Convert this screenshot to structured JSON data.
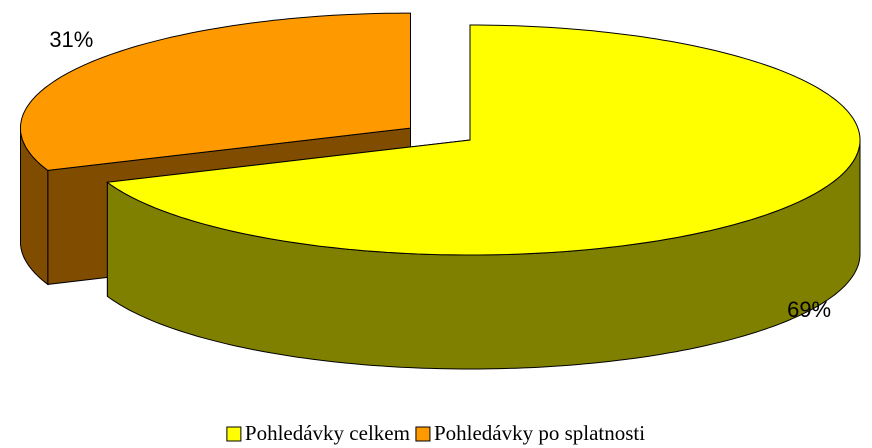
{
  "chart_data": {
    "type": "pie",
    "categories": [
      "Pohledávky celkem",
      "Pohledávky po splatnosti"
    ],
    "values": [
      69,
      31
    ],
    "value_labels": [
      "69%",
      "31%"
    ],
    "colors": [
      "#ffff00",
      "#ff9900"
    ],
    "side_colors": [
      "#808000",
      "#804c00"
    ],
    "legend": "bottom"
  }
}
